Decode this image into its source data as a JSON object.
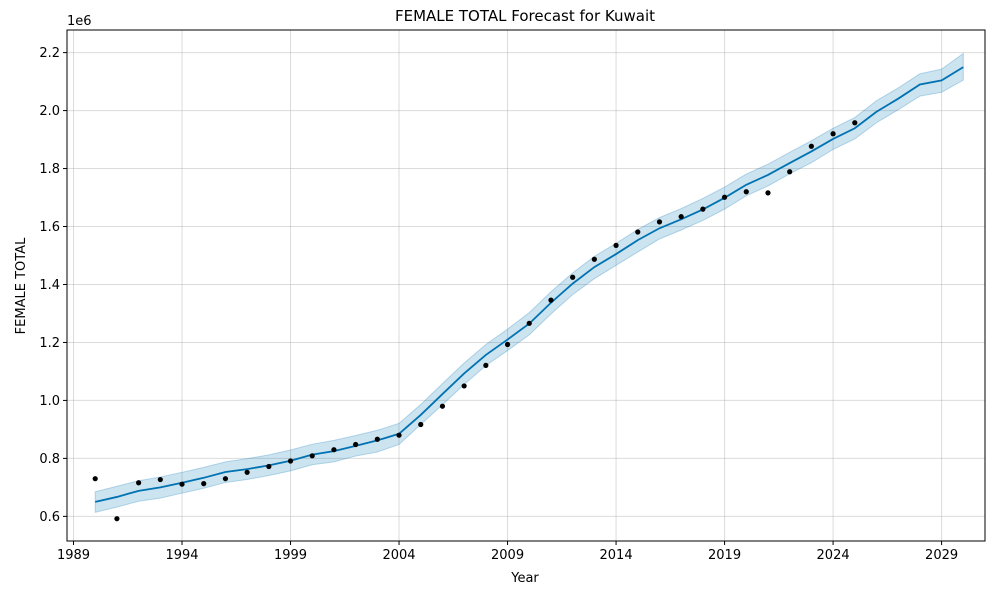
{
  "chart_data": {
    "type": "line",
    "title": "FEMALE TOTAL Forecast for Kuwait",
    "xlabel": "Year",
    "ylabel": "FEMALE TOTAL",
    "y_offset_label": "1e6",
    "xlim": [
      1988.7,
      2031.0
    ],
    "ylim": [
      0.515,
      2.278
    ],
    "x_ticks": [
      1989,
      1994,
      1999,
      2004,
      2009,
      2014,
      2019,
      2024,
      2029
    ],
    "x_tick_labels": [
      "1989",
      "1994",
      "1999",
      "2004",
      "2009",
      "2014",
      "2019",
      "2024",
      "2029"
    ],
    "y_ticks": [
      0.6,
      0.8,
      1.0,
      1.2,
      1.4,
      1.6,
      1.8,
      2.0,
      2.2
    ],
    "y_tick_labels": [
      "0.6",
      "0.8",
      "1.0",
      "1.2",
      "1.4",
      "1.6",
      "1.8",
      "2.0",
      "2.2"
    ],
    "grid": true,
    "colors": {
      "forecast_line": "#0072b2",
      "interval_fill": "#0072b2",
      "observed_points": "#000000"
    },
    "series": [
      {
        "kind": "forecast",
        "x": [
          1990,
          1991,
          1992,
          1993,
          1994,
          1995,
          1996,
          1997,
          1998,
          1999,
          2000,
          2001,
          2002,
          2003,
          2004,
          2005,
          2006,
          2007,
          2008,
          2009,
          2010,
          2011,
          2012,
          2013,
          2014,
          2015,
          2016,
          2017,
          2018,
          2019,
          2020,
          2021,
          2022,
          2023,
          2024,
          2025,
          2026,
          2027,
          2028,
          2029,
          2030
        ],
        "y": [
          0.65,
          0.667,
          0.688,
          0.7,
          0.716,
          0.733,
          0.753,
          0.763,
          0.776,
          0.792,
          0.813,
          0.825,
          0.843,
          0.862,
          0.885,
          0.95,
          1.022,
          1.093,
          1.157,
          1.21,
          1.265,
          1.337,
          1.403,
          1.46,
          1.505,
          1.553,
          1.594,
          1.625,
          1.659,
          1.699,
          1.744,
          1.778,
          1.819,
          1.859,
          1.902,
          1.939,
          1.996,
          2.041,
          2.09,
          2.104,
          2.15
        ],
        "lower": [
          0.614,
          0.632,
          0.652,
          0.663,
          0.68,
          0.697,
          0.717,
          0.727,
          0.741,
          0.757,
          0.778,
          0.788,
          0.808,
          0.822,
          0.848,
          0.917,
          0.985,
          1.055,
          1.12,
          1.172,
          1.226,
          1.298,
          1.365,
          1.42,
          1.466,
          1.512,
          1.557,
          1.588,
          1.621,
          1.66,
          1.706,
          1.74,
          1.782,
          1.82,
          1.866,
          1.902,
          1.958,
          2.003,
          2.05,
          2.063,
          2.105
        ],
        "upper": [
          0.685,
          0.704,
          0.723,
          0.736,
          0.752,
          0.769,
          0.788,
          0.799,
          0.812,
          0.829,
          0.849,
          0.862,
          0.879,
          0.897,
          0.921,
          0.986,
          1.058,
          1.129,
          1.193,
          1.246,
          1.303,
          1.375,
          1.44,
          1.497,
          1.542,
          1.59,
          1.631,
          1.662,
          1.697,
          1.736,
          1.781,
          1.815,
          1.856,
          1.896,
          1.939,
          1.976,
          2.034,
          2.078,
          2.127,
          2.143,
          2.197
        ]
      },
      {
        "kind": "observed",
        "x": [
          1990,
          1991,
          1992,
          1993,
          1994,
          1995,
          1996,
          1997,
          1998,
          1999,
          2000,
          2001,
          2002,
          2003,
          2004,
          2005,
          2006,
          2007,
          2008,
          2009,
          2010,
          2011,
          2012,
          2013,
          2014,
          2015,
          2016,
          2017,
          2018,
          2019,
          2020,
          2021,
          2022,
          2023,
          2024,
          2025
        ],
        "y": [
          0.73,
          0.592,
          0.716,
          0.727,
          0.711,
          0.713,
          0.73,
          0.752,
          0.772,
          0.791,
          0.809,
          0.83,
          0.848,
          0.866,
          0.88,
          0.917,
          0.98,
          1.05,
          1.121,
          1.193,
          1.266,
          1.346,
          1.425,
          1.487,
          1.535,
          1.581,
          1.616,
          1.634,
          1.66,
          1.701,
          1.72,
          1.716,
          1.789,
          1.877,
          1.92,
          1.958
        ]
      }
    ]
  }
}
